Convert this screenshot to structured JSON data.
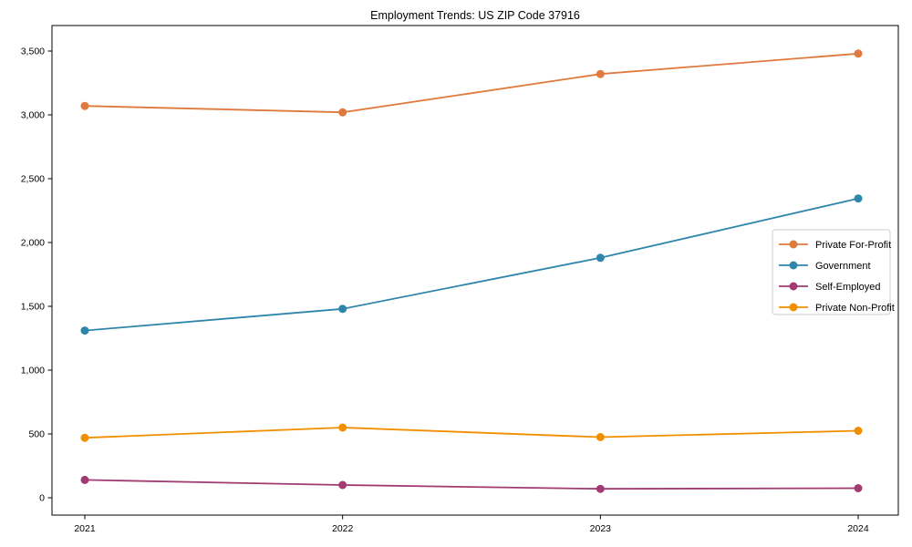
{
  "chart_data": {
    "type": "line",
    "title": "Employment Trends: US ZIP Code 37916",
    "xlabel": "",
    "ylabel": "",
    "categories": [
      "2021",
      "2022",
      "2023",
      "2024"
    ],
    "series": [
      {
        "name": "Private For-Profit",
        "color": "#E0793C",
        "values": [
          3070,
          3020,
          3320,
          3480
        ]
      },
      {
        "name": "Government",
        "color": "#2E86AB",
        "values": [
          1310,
          1480,
          1880,
          2345
        ]
      },
      {
        "name": "Self-Employed",
        "color": "#A23B72",
        "values": [
          140,
          100,
          70,
          75
        ]
      },
      {
        "name": "Private Non-Profit",
        "color": "#F18F01",
        "values": [
          470,
          550,
          475,
          525
        ]
      }
    ],
    "ylim": [
      0,
      3500
    ],
    "yticks": [
      0,
      500,
      1000,
      1500,
      2000,
      2500,
      3000,
      3500
    ],
    "ytick_labels": [
      "0",
      "500",
      "1,000",
      "1,500",
      "2,000",
      "2,500",
      "3,000",
      "3,500"
    ],
    "grid": false,
    "legend_position": "center-right",
    "marker": "circle",
    "frame_color": "#000000",
    "legend_border_color": "#cccccc",
    "legend_background": "#ffffff"
  }
}
